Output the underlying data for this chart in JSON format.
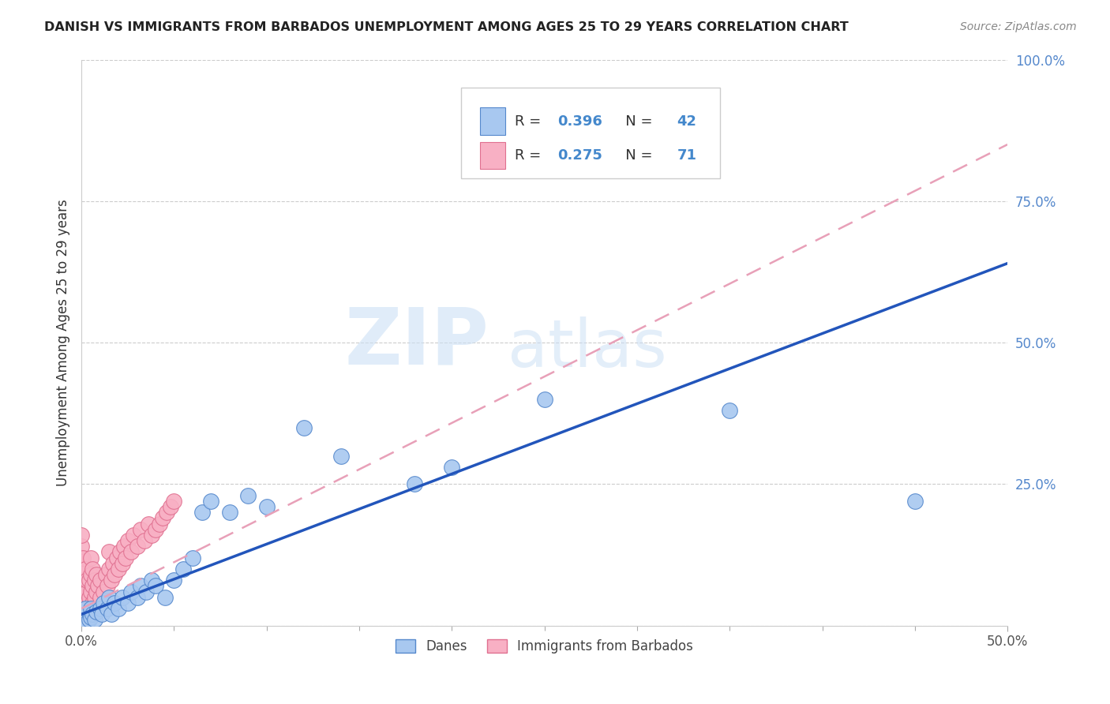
{
  "title": "DANISH VS IMMIGRANTS FROM BARBADOS UNEMPLOYMENT AMONG AGES 25 TO 29 YEARS CORRELATION CHART",
  "source": "Source: ZipAtlas.com",
  "ylabel": "Unemployment Among Ages 25 to 29 years",
  "xlim": [
    0,
    0.5
  ],
  "ylim": [
    0,
    1.0
  ],
  "xticks": [
    0.0,
    0.5
  ],
  "yticks": [
    0.0,
    0.25,
    0.5,
    0.75,
    1.0
  ],
  "xtick_labels": [
    "0.0%",
    "50.0%"
  ],
  "ytick_labels": [
    "",
    "25.0%",
    "50.0%",
    "75.0%",
    "100.0%"
  ],
  "danes_color": "#a8c8f0",
  "danes_edge_color": "#5588cc",
  "barbados_color": "#f8b0c4",
  "barbados_edge_color": "#e07090",
  "blue_line_color": "#2255bb",
  "pink_line_color": "#e8a0b8",
  "danes_R": 0.396,
  "danes_N": 42,
  "barbados_R": 0.275,
  "barbados_N": 71,
  "danes_points_x": [
    0.001,
    0.002,
    0.002,
    0.003,
    0.004,
    0.005,
    0.005,
    0.006,
    0.007,
    0.008,
    0.01,
    0.011,
    0.012,
    0.014,
    0.015,
    0.016,
    0.018,
    0.02,
    0.022,
    0.025,
    0.027,
    0.03,
    0.032,
    0.035,
    0.038,
    0.04,
    0.045,
    0.05,
    0.055,
    0.06,
    0.065,
    0.07,
    0.08,
    0.09,
    0.1,
    0.12,
    0.14,
    0.18,
    0.2,
    0.25,
    0.35,
    0.45
  ],
  "danes_points_y": [
    0.01,
    0.02,
    0.03,
    0.005,
    0.01,
    0.015,
    0.03,
    0.02,
    0.01,
    0.025,
    0.03,
    0.02,
    0.04,
    0.03,
    0.05,
    0.02,
    0.04,
    0.03,
    0.05,
    0.04,
    0.06,
    0.05,
    0.07,
    0.06,
    0.08,
    0.07,
    0.05,
    0.08,
    0.1,
    0.12,
    0.2,
    0.22,
    0.2,
    0.23,
    0.21,
    0.35,
    0.3,
    0.25,
    0.28,
    0.4,
    0.38,
    0.22
  ],
  "barbados_points_x": [
    0.0,
    0.0,
    0.0,
    0.0,
    0.0,
    0.0,
    0.0,
    0.0,
    0.0,
    0.0,
    0.0,
    0.001,
    0.001,
    0.001,
    0.001,
    0.001,
    0.001,
    0.002,
    0.002,
    0.002,
    0.002,
    0.002,
    0.003,
    0.003,
    0.003,
    0.003,
    0.004,
    0.004,
    0.004,
    0.005,
    0.005,
    0.005,
    0.005,
    0.006,
    0.006,
    0.006,
    0.007,
    0.007,
    0.008,
    0.008,
    0.009,
    0.01,
    0.01,
    0.012,
    0.013,
    0.014,
    0.015,
    0.015,
    0.016,
    0.017,
    0.018,
    0.019,
    0.02,
    0.021,
    0.022,
    0.023,
    0.024,
    0.025,
    0.027,
    0.028,
    0.03,
    0.032,
    0.034,
    0.036,
    0.038,
    0.04,
    0.042,
    0.044,
    0.046,
    0.048,
    0.05
  ],
  "barbados_points_y": [
    0.01,
    0.02,
    0.03,
    0.04,
    0.05,
    0.06,
    0.08,
    0.1,
    0.12,
    0.14,
    0.16,
    0.02,
    0.04,
    0.06,
    0.08,
    0.1,
    0.12,
    0.02,
    0.04,
    0.06,
    0.08,
    0.1,
    0.02,
    0.04,
    0.06,
    0.08,
    0.02,
    0.05,
    0.08,
    0.03,
    0.06,
    0.09,
    0.12,
    0.04,
    0.07,
    0.1,
    0.05,
    0.08,
    0.06,
    0.09,
    0.07,
    0.05,
    0.08,
    0.06,
    0.09,
    0.07,
    0.1,
    0.13,
    0.08,
    0.11,
    0.09,
    0.12,
    0.1,
    0.13,
    0.11,
    0.14,
    0.12,
    0.15,
    0.13,
    0.16,
    0.14,
    0.17,
    0.15,
    0.18,
    0.16,
    0.17,
    0.18,
    0.19,
    0.2,
    0.21,
    0.22
  ],
  "watermark_zip": "ZIP",
  "watermark_atlas": "atlas",
  "blue_line_x0": 0.0,
  "blue_line_y0": 0.02,
  "blue_line_x1": 0.5,
  "blue_line_y1": 0.64,
  "pink_line_x0": 0.0,
  "pink_line_y0": 0.03,
  "pink_line_x1": 0.5,
  "pink_line_y1": 0.85
}
